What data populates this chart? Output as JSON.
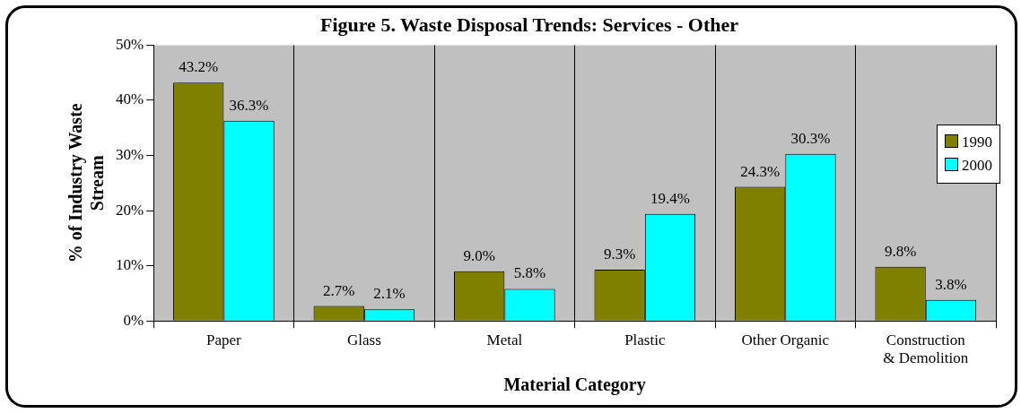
{
  "chart_data": {
    "type": "bar",
    "title": "Figure 5. Waste Disposal Trends: Services - Other",
    "xlabel": "Material Category",
    "ylabel": "% of Industry Waste Stream",
    "categories": [
      "Paper",
      "Glass",
      "Metal",
      "Plastic",
      "Other Organic",
      "Construction & Demolition"
    ],
    "series": [
      {
        "name": "1990",
        "color": "#808000",
        "values": [
          43.2,
          2.7,
          9.0,
          9.3,
          24.3,
          9.8
        ],
        "value_labels": [
          "43.2%",
          "2.7%",
          "9.0%",
          "9.3%",
          "24.3%",
          "9.8%"
        ]
      },
      {
        "name": "2000",
        "color": "#00ffff",
        "values": [
          36.3,
          2.1,
          5.8,
          19.4,
          30.3,
          3.8
        ],
        "value_labels": [
          "36.3%",
          "2.1%",
          "5.8%",
          "19.4%",
          "30.3%",
          "3.8%"
        ]
      }
    ],
    "ylim": [
      0,
      50
    ],
    "yticks": [
      {
        "value": 0,
        "label": "0%"
      },
      {
        "value": 10,
        "label": "10%"
      },
      {
        "value": 20,
        "label": "20%"
      },
      {
        "value": 30,
        "label": "30%"
      },
      {
        "value": 40,
        "label": "40%"
      },
      {
        "value": 50,
        "label": "50%"
      }
    ],
    "grid": "x",
    "legend": "right"
  }
}
